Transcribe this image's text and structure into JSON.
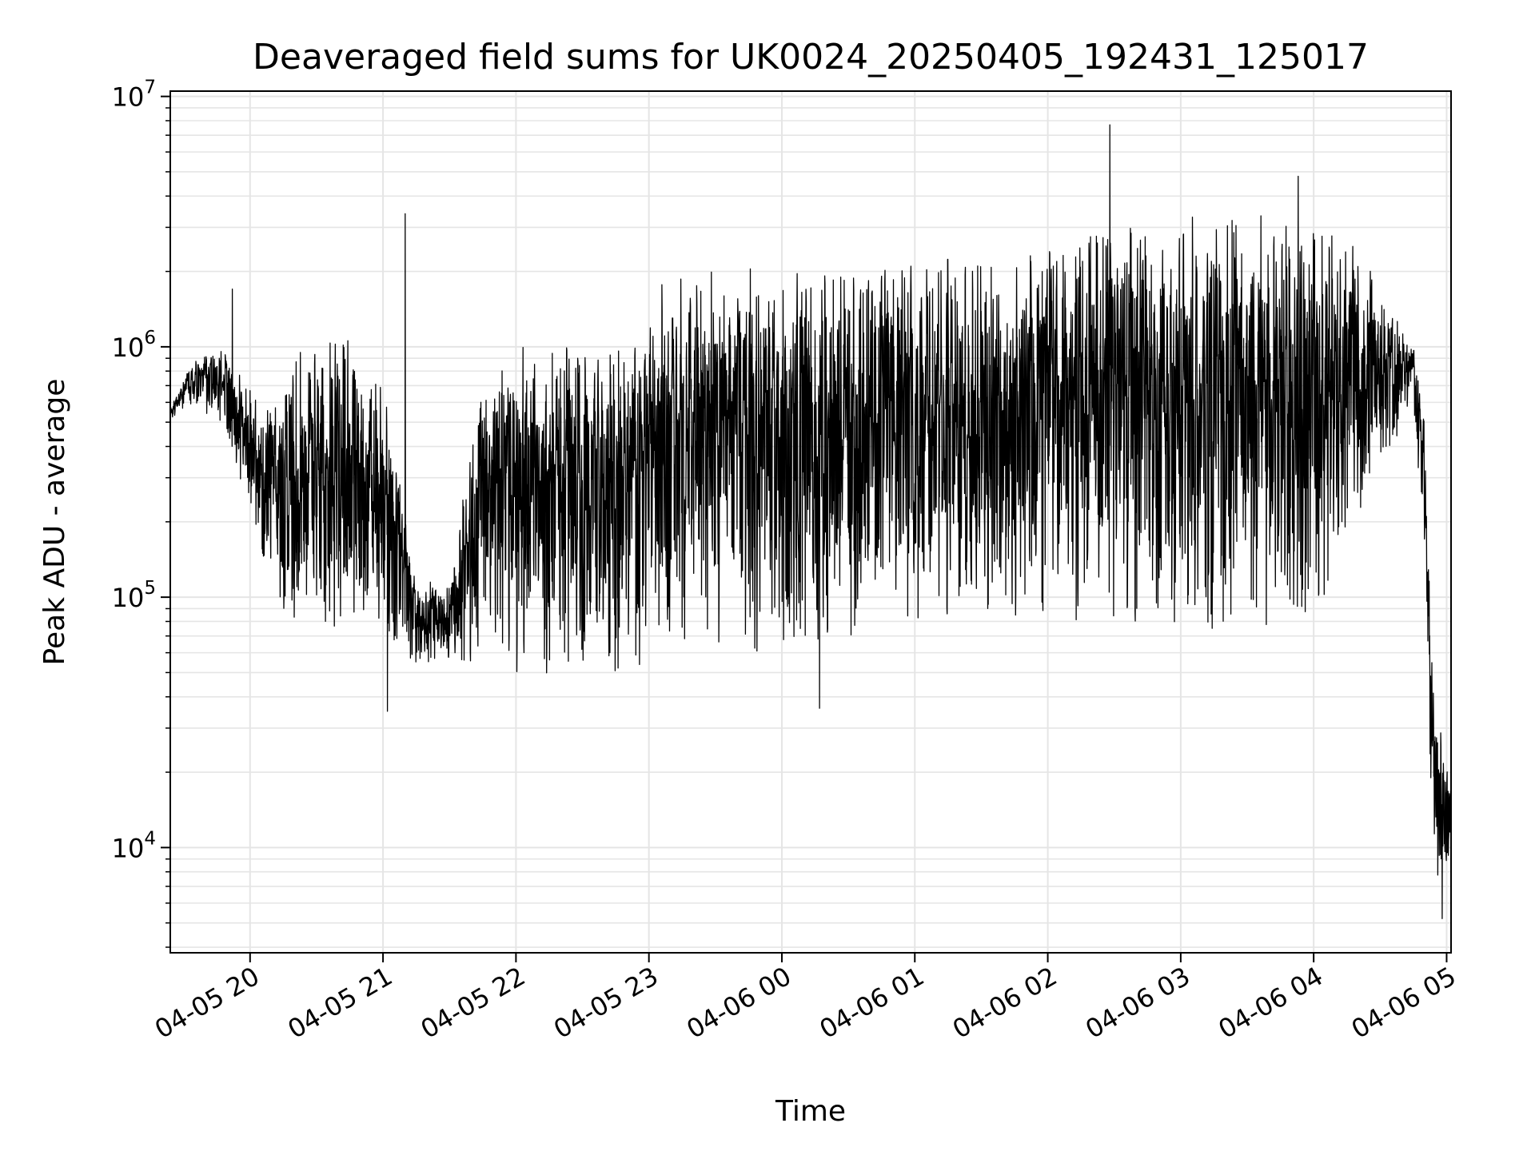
{
  "chart_data": {
    "type": "line",
    "title": "Deaveraged field sums for UK0024_20250405_192431_125017",
    "xlabel": "Time",
    "ylabel": "Peak ADU - average",
    "yscale": "log",
    "ylim": [
      3800,
      10500000
    ],
    "xlim": [
      "04-05 19:24",
      "04-06 05:02"
    ],
    "grid": true,
    "line_color": "#000000",
    "grid_color": "#e5e5e5",
    "x_ticks": [
      {
        "label": "04-05 20",
        "time": "04-05 20:00"
      },
      {
        "label": "04-05 21",
        "time": "04-05 21:00"
      },
      {
        "label": "04-05 22",
        "time": "04-05 22:00"
      },
      {
        "label": "04-05 23",
        "time": "04-05 23:00"
      },
      {
        "label": "04-06 00",
        "time": "04-06 00:00"
      },
      {
        "label": "04-06 01",
        "time": "04-06 01:00"
      },
      {
        "label": "04-06 02",
        "time": "04-06 02:00"
      },
      {
        "label": "04-06 03",
        "time": "04-06 03:00"
      },
      {
        "label": "04-06 04",
        "time": "04-06 04:00"
      },
      {
        "label": "04-06 05",
        "time": "04-06 05:00"
      }
    ],
    "y_ticks": [
      {
        "base": "10",
        "exp": "4",
        "value": 10000
      },
      {
        "base": "10",
        "exp": "5",
        "value": 100000
      },
      {
        "base": "10",
        "exp": "6",
        "value": 1000000
      },
      {
        "base": "10",
        "exp": "7",
        "value": 10000000
      }
    ],
    "envelope": {
      "description_units": "time HH:MM, values in ADU",
      "points": [
        {
          "t": "04-05 19:24",
          "low": 500000,
          "high": 600000
        },
        {
          "t": "04-05 19:35",
          "low": 600000,
          "high": 900000
        },
        {
          "t": "04-05 19:50",
          "low": 450000,
          "high": 1000000
        },
        {
          "t": "04-05 19:55",
          "low": 300000,
          "high": 800000
        },
        {
          "t": "04-05 20:05",
          "low": 150000,
          "high": 600000
        },
        {
          "t": "04-05 20:15",
          "low": 90000,
          "high": 800000
        },
        {
          "t": "04-05 20:30",
          "low": 70000,
          "high": 1200000
        },
        {
          "t": "04-05 20:45",
          "low": 70000,
          "high": 1100000
        },
        {
          "t": "04-05 21:00",
          "low": 55000,
          "high": 700000
        },
        {
          "t": "04-05 21:15",
          "low": 55000,
          "high": 120000
        },
        {
          "t": "04-05 21:30",
          "low": 55000,
          "high": 110000
        },
        {
          "t": "04-05 21:45",
          "low": 50000,
          "high": 900000
        },
        {
          "t": "04-05 22:00",
          "low": 50000,
          "high": 1000000
        },
        {
          "t": "04-05 22:30",
          "low": 48000,
          "high": 1050000
        },
        {
          "t": "04-05 22:55",
          "low": 50000,
          "high": 1050000
        },
        {
          "t": "04-05 23:00",
          "low": 60000,
          "high": 1800000
        },
        {
          "t": "04-05 23:30",
          "low": 60000,
          "high": 2000000
        },
        {
          "t": "04-06 00:00",
          "low": 60000,
          "high": 2100000
        },
        {
          "t": "04-06 00:30",
          "low": 70000,
          "high": 2200000
        },
        {
          "t": "04-06 01:00",
          "low": 80000,
          "high": 2200000
        },
        {
          "t": "04-06 01:30",
          "low": 80000,
          "high": 2300000
        },
        {
          "t": "04-06 02:00",
          "low": 80000,
          "high": 2500000
        },
        {
          "t": "04-06 02:30",
          "low": 80000,
          "high": 3000000
        },
        {
          "t": "04-06 03:00",
          "low": 70000,
          "high": 3300000
        },
        {
          "t": "04-06 03:30",
          "low": 70000,
          "high": 3500000
        },
        {
          "t": "04-06 04:00",
          "low": 80000,
          "high": 3500000
        },
        {
          "t": "04-06 04:20",
          "low": 200000,
          "high": 2500000
        },
        {
          "t": "04-06 04:45",
          "low": 600000,
          "high": 1000000
        },
        {
          "t": "04-06 04:50",
          "low": 150000,
          "high": 600000
        },
        {
          "t": "04-06 04:53",
          "low": 10000,
          "high": 80000
        },
        {
          "t": "04-06 04:57",
          "low": 6000,
          "high": 30000
        },
        {
          "t": "04-06 05:02",
          "low": 10000,
          "high": 20000
        }
      ]
    },
    "notable_spikes": [
      {
        "t": "04-05 19:52",
        "value": 1700000
      },
      {
        "t": "04-05 21:10",
        "value": 3400000
      },
      {
        "t": "04-06 02:28",
        "value": 7700000
      },
      {
        "t": "04-06 03:53",
        "value": 4800000
      }
    ],
    "notable_dips": [
      {
        "t": "04-05 21:02",
        "value": 35000
      },
      {
        "t": "04-06 00:17",
        "value": 36000
      },
      {
        "t": "04-06 04:58",
        "value": 5200
      }
    ]
  }
}
